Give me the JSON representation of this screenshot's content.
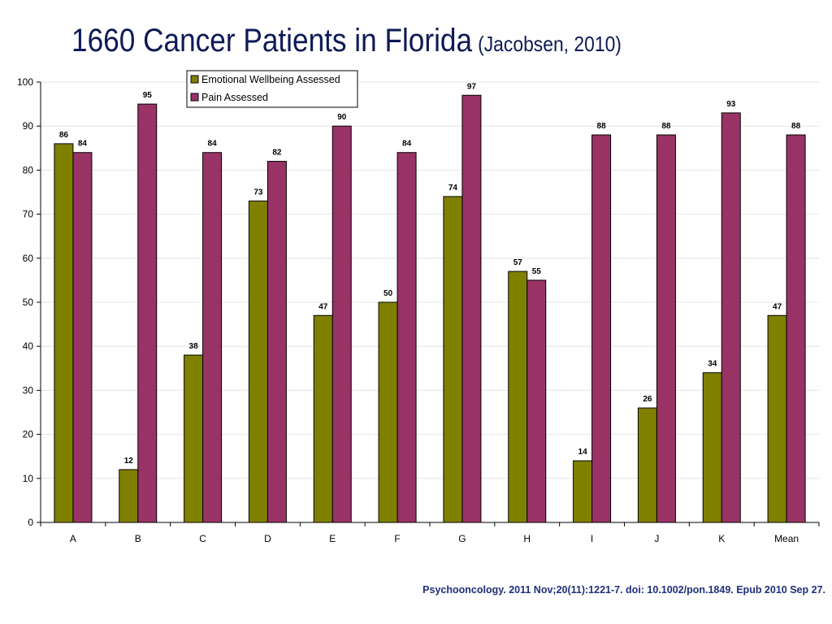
{
  "slide": {
    "title": "1660 Cancer Patients in Florida",
    "subtitle": "(Jacobsen, 2010)",
    "citation": "Psychooncology. 2011 Nov;20(11):1221-7. doi: 10.1002/pon.1849. Epub 2010 Sep 27."
  },
  "chart_data": {
    "type": "bar",
    "categories": [
      "A",
      "B",
      "C",
      "D",
      "E",
      "F",
      "G",
      "H",
      "I",
      "J",
      "K",
      "Mean"
    ],
    "series": [
      {
        "name": "Emotional Wellbeing Assessed",
        "color": "#808000",
        "values": [
          86,
          12,
          38,
          73,
          47,
          50,
          74,
          57,
          14,
          26,
          34,
          47
        ]
      },
      {
        "name": "Pain Assessed",
        "color": "#993366",
        "values": [
          84,
          95,
          84,
          82,
          90,
          84,
          97,
          55,
          88,
          88,
          93,
          88
        ]
      }
    ],
    "ylim": [
      0,
      100
    ],
    "yticks": [
      0,
      10,
      20,
      30,
      40,
      50,
      60,
      70,
      80,
      90,
      100
    ],
    "grid": true,
    "legend": "top-center",
    "data_labels": true
  }
}
